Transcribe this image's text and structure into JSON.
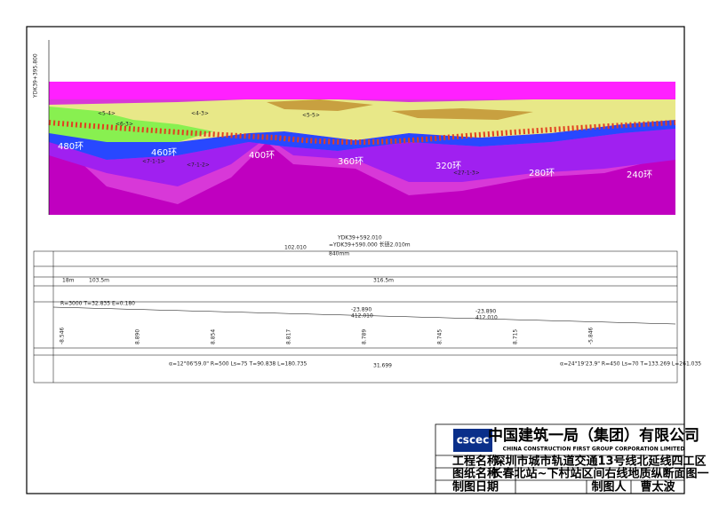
{
  "header": {
    "company_cn": "中国建筑一局（集团）有限公司",
    "company_en": "CHINA CONSTRUCTION FIRST GROUP CORPORATION LIMITED",
    "logo": "cscec",
    "project_label": "工程名称",
    "project_name": "深圳市城市轨道交通13号线北延线四工区",
    "drawing_label": "图纸名称",
    "drawing_name": "长春北站~下村站区间右线地质纵断面图一",
    "date_label": "制图日期",
    "drafter_label": "制图人",
    "drafter": "曹太波"
  },
  "section": {
    "start_chainage": "YDK39+395.800",
    "rings": [
      "480环",
      "460环",
      "400环",
      "360环",
      "320环",
      "280环",
      "240环"
    ],
    "strata": [
      "<5-4>",
      "<6-3>",
      "<4-3>",
      "<5-5>",
      "<7-1-1>",
      "<7-1-2>",
      "<27-1-3>"
    ]
  },
  "profile_table": {
    "chain_break": "YDK39+592.010",
    "chain_equal": "=YDK39+590.000 长链2.010m",
    "offset": "102.010",
    "width": "840mm",
    "curve_left": "R=3000  T=32.835  E=0.180",
    "slope_1": "-23.890",
    "length_1": "412.010",
    "slope_2": "-23.890",
    "length_2": "412.010",
    "curve_a": "α=12°06'59.0\"  R=500  Ls=75  T=90.838  L=180.735",
    "curve_b": "α=24°19'23.9\"  R=450  Ls=70  T=133.269  L=261.035",
    "elev": [
      "-8.546",
      "8.890",
      "8.854",
      "8.817",
      "8.789",
      "8.745",
      "8.715",
      "-5.846"
    ],
    "dist": [
      "31.699",
      "316.5m",
      "103.5m",
      "18m"
    ]
  }
}
